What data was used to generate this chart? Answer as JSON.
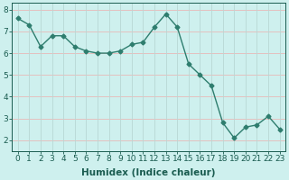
{
  "x": [
    0,
    1,
    2,
    3,
    4,
    5,
    6,
    7,
    8,
    9,
    10,
    11,
    12,
    13,
    14,
    15,
    16,
    17,
    18,
    19,
    20,
    21,
    22,
    23
  ],
  "y": [
    7.6,
    7.3,
    6.3,
    6.8,
    6.8,
    6.3,
    6.1,
    6.0,
    6.0,
    6.1,
    6.4,
    6.5,
    7.2,
    7.8,
    7.2,
    5.5,
    5.0,
    4.5,
    2.8,
    2.1,
    2.6,
    2.7,
    3.1,
    2.5
  ],
  "line_color": "#2e7d6e",
  "marker": "D",
  "markersize": 2.5,
  "linewidth": 1.0,
  "xlabel": "Humidex (Indice chaleur)",
  "ylim": [
    1.5,
    8.3
  ],
  "xlim": [
    -0.5,
    23.5
  ],
  "yticks": [
    2,
    3,
    4,
    5,
    6,
    7,
    8
  ],
  "xticks": [
    0,
    1,
    2,
    3,
    4,
    5,
    6,
    7,
    8,
    9,
    10,
    11,
    12,
    13,
    14,
    15,
    16,
    17,
    18,
    19,
    20,
    21,
    22,
    23
  ],
  "background_color": "#cef0ee",
  "grid_color_h": "#e8b8b8",
  "grid_color_v": "#b8d8d4",
  "tick_fontsize": 6.5,
  "label_fontsize": 7.5,
  "text_color": "#1a5c50"
}
